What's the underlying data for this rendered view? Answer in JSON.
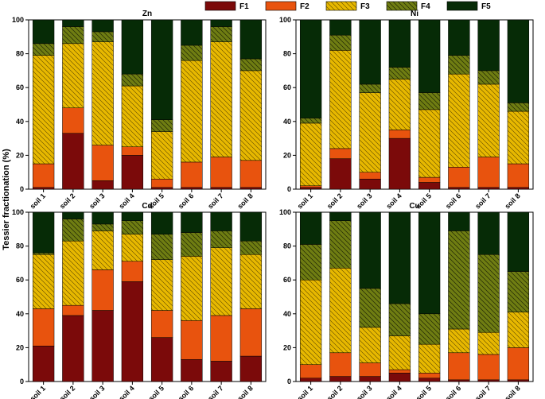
{
  "chart_data": {
    "type": "stacked-bar",
    "ylabel": "Tessier fractionation (%)",
    "ylim": [
      0,
      100
    ],
    "yticks": [
      0,
      20,
      40,
      60,
      80,
      100
    ],
    "categories": [
      "soil 1",
      "soil 2",
      "soil 3",
      "soil 4",
      "soil 5",
      "soil 6",
      "soil 7",
      "soil 8"
    ],
    "legend": [
      {
        "key": "F1",
        "label": "F1",
        "color": "#7b0a0a",
        "hatch": "none"
      },
      {
        "key": "F2",
        "label": "F2",
        "color": "#e8530e",
        "hatch": "none"
      },
      {
        "key": "F3",
        "label": "F3",
        "color": "#e7b800",
        "hatch": "diag"
      },
      {
        "key": "F4",
        "label": "F4",
        "color": "#6f7d12",
        "hatch": "diag"
      },
      {
        "key": "F5",
        "label": "F5",
        "color": "#062b06",
        "hatch": "none"
      }
    ],
    "panels": [
      {
        "title": "Zn",
        "series": {
          "F1": [
            1,
            33,
            5,
            20,
            1,
            1,
            1,
            1
          ],
          "F2": [
            14,
            15,
            21,
            5,
            5,
            15,
            18,
            16
          ],
          "F3": [
            64,
            38,
            61,
            36,
            28,
            60,
            68,
            53
          ],
          "F4": [
            7,
            10,
            6,
            7,
            7,
            9,
            9,
            7
          ],
          "F5": [
            14,
            4,
            7,
            32,
            59,
            15,
            4,
            23
          ]
        }
      },
      {
        "title": "Ni",
        "series": {
          "F1": [
            1,
            18,
            6,
            30,
            4,
            1,
            1,
            1
          ],
          "F2": [
            1,
            6,
            4,
            5,
            3,
            12,
            18,
            14
          ],
          "F3": [
            37,
            58,
            47,
            30,
            40,
            55,
            43,
            31
          ],
          "F4": [
            3,
            9,
            5,
            7,
            10,
            11,
            8,
            5
          ],
          "F5": [
            58,
            9,
            38,
            28,
            43,
            21,
            30,
            49
          ]
        }
      },
      {
        "title": "Cd",
        "series": {
          "F1": [
            21,
            39,
            42,
            59,
            26,
            13,
            12,
            15
          ],
          "F2": [
            22,
            6,
            24,
            12,
            16,
            23,
            27,
            28
          ],
          "F3": [
            32,
            38,
            23,
            16,
            30,
            38,
            40,
            32
          ],
          "F4": [
            1,
            13,
            4,
            8,
            15,
            14,
            10,
            8
          ],
          "F5": [
            24,
            4,
            7,
            5,
            13,
            12,
            11,
            17
          ]
        }
      },
      {
        "title": "Cu",
        "series": {
          "F1": [
            2,
            3,
            3,
            5,
            2,
            1,
            1,
            1
          ],
          "F2": [
            8,
            14,
            8,
            2,
            3,
            16,
            15,
            19
          ],
          "F3": [
            50,
            50,
            21,
            20,
            17,
            14,
            13,
            21
          ],
          "F4": [
            21,
            28,
            23,
            19,
            18,
            58,
            46,
            24
          ],
          "F5": [
            19,
            5,
            45,
            54,
            60,
            11,
            25,
            35
          ]
        }
      }
    ]
  }
}
